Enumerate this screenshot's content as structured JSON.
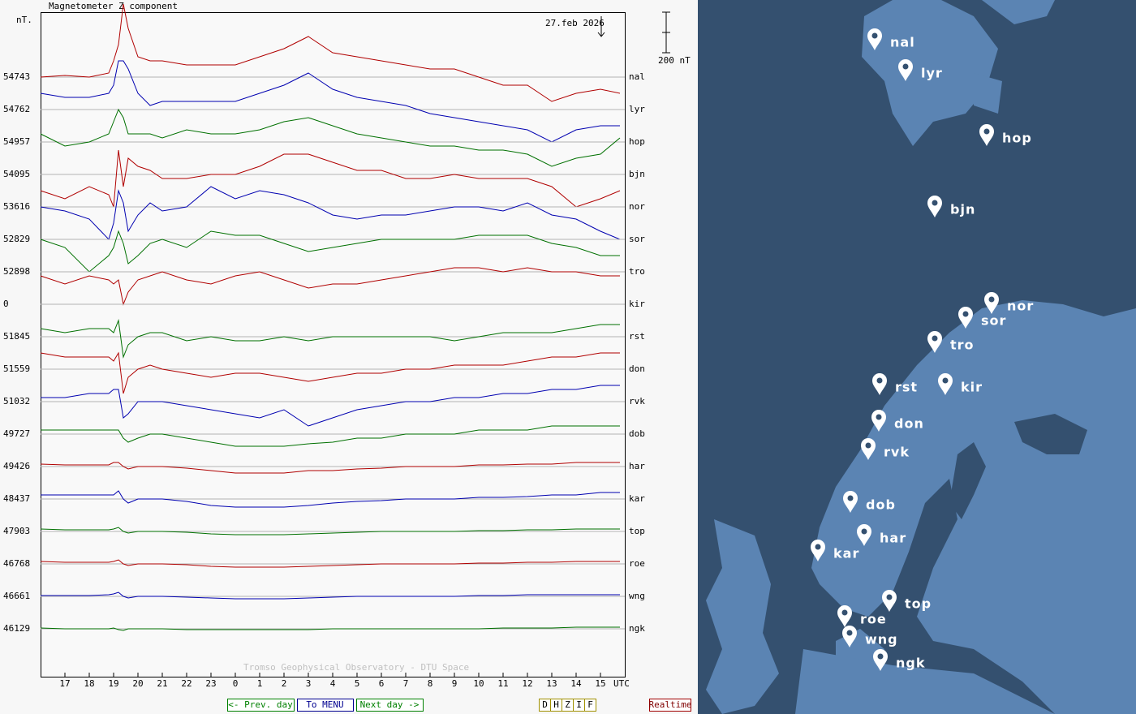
{
  "header": {
    "title": "Magnetometer Z component",
    "unit": "nT.",
    "date": "27.feb 2026"
  },
  "scale": {
    "value": 200,
    "label": "200 nT"
  },
  "credit": "Tromso Geophysical Observatory - DTU Space",
  "chart_data": {
    "type": "line",
    "x": [
      16,
      17,
      18,
      18.8,
      19,
      19.2,
      19.4,
      19.6,
      20,
      20.5,
      21,
      22,
      23,
      24,
      25,
      26,
      27,
      28,
      29,
      30,
      31,
      32,
      33,
      34,
      35,
      36,
      37,
      38,
      39,
      39.8
    ],
    "xlim": [
      16,
      40
    ],
    "xticks": [
      17,
      18,
      19,
      20,
      21,
      22,
      23,
      {
        "value": 24,
        "label": "0"
      },
      {
        "value": 25,
        "label": "1"
      },
      {
        "value": 26,
        "label": "2"
      },
      {
        "value": 27,
        "label": "3"
      },
      {
        "value": 28,
        "label": "4"
      },
      {
        "value": 29,
        "label": "5"
      },
      {
        "value": 30,
        "label": "6"
      },
      {
        "value": 31,
        "label": "7"
      },
      {
        "value": 32,
        "label": "8"
      },
      {
        "value": 33,
        "label": "9"
      },
      {
        "value": 34,
        "label": "10"
      },
      {
        "value": 35,
        "label": "11"
      },
      {
        "value": 36,
        "label": "12"
      },
      {
        "value": 37,
        "label": "13"
      },
      {
        "value": 38,
        "label": "14"
      },
      {
        "value": 39,
        "label": "15"
      }
    ],
    "x_unit": "UTC",
    "series": [
      {
        "name": "nal",
        "baseline": 54743,
        "color": "#b00000",
        "values": [
          0,
          8,
          0,
          20,
          80,
          160,
          360,
          240,
          100,
          80,
          80,
          60,
          60,
          60,
          100,
          140,
          200,
          120,
          100,
          80,
          60,
          40,
          40,
          0,
          -40,
          -40,
          -120,
          -80,
          -60,
          -80
        ]
      },
      {
        "name": "lyr",
        "baseline": 54762,
        "color": "#0000b0",
        "values": [
          80,
          60,
          60,
          80,
          120,
          240,
          240,
          200,
          80,
          20,
          40,
          40,
          40,
          40,
          80,
          120,
          180,
          100,
          60,
          40,
          20,
          -20,
          -40,
          -60,
          -80,
          -100,
          -160,
          -100,
          -80,
          -80
        ]
      },
      {
        "name": "hop",
        "baseline": 54957,
        "color": "#007000",
        "values": [
          40,
          -20,
          0,
          40,
          100,
          160,
          120,
          40,
          40,
          40,
          20,
          60,
          40,
          40,
          60,
          100,
          120,
          80,
          40,
          20,
          0,
          -20,
          -20,
          -40,
          -40,
          -60,
          -120,
          -80,
          -60,
          20
        ]
      },
      {
        "name": "bjn",
        "baseline": 54095,
        "color": "#b00000",
        "values": [
          -80,
          -120,
          -60,
          -100,
          -160,
          120,
          -60,
          80,
          40,
          20,
          -20,
          -20,
          0,
          0,
          40,
          100,
          100,
          60,
          20,
          20,
          -20,
          -20,
          0,
          -20,
          -20,
          -20,
          -60,
          -160,
          -120,
          -80
        ]
      },
      {
        "name": "nor",
        "baseline": 53616,
        "color": "#0000b0",
        "values": [
          0,
          -20,
          -60,
          -160,
          -80,
          80,
          20,
          -120,
          -40,
          20,
          -20,
          0,
          100,
          40,
          80,
          60,
          20,
          -40,
          -60,
          -40,
          -40,
          -20,
          0,
          0,
          -20,
          20,
          -40,
          -60,
          -120,
          -160
        ]
      },
      {
        "name": "sor",
        "baseline": 52829,
        "color": "#007000",
        "values": [
          0,
          -40,
          -160,
          -80,
          -40,
          40,
          -20,
          -120,
          -80,
          -20,
          0,
          -40,
          40,
          20,
          20,
          -20,
          -60,
          -40,
          -20,
          0,
          0,
          0,
          0,
          20,
          20,
          20,
          -20,
          -40,
          -80,
          -80
        ]
      },
      {
        "name": "tro",
        "baseline": 52898,
        "color": "#b00000",
        "values": [
          -20,
          -60,
          -20,
          -40,
          -60,
          -40,
          -160,
          -100,
          -40,
          -20,
          0,
          -40,
          -60,
          -20,
          0,
          -40,
          -80,
          -60,
          -60,
          -40,
          -20,
          0,
          20,
          20,
          0,
          20,
          0,
          0,
          -20,
          -20
        ]
      },
      {
        "name": "kir",
        "baseline": 0,
        "color": "#0000b0",
        "values": [
          null,
          null,
          null,
          null,
          null,
          null,
          null,
          null,
          null,
          null,
          null,
          null,
          null,
          null,
          null,
          null,
          null,
          null,
          null,
          null,
          null,
          null,
          null,
          null,
          null,
          null,
          null,
          null,
          null,
          null
        ]
      },
      {
        "name": "rst",
        "baseline": 51845,
        "color": "#007000",
        "values": [
          40,
          20,
          40,
          40,
          20,
          80,
          -100,
          -40,
          0,
          20,
          20,
          -20,
          0,
          -20,
          -20,
          0,
          -20,
          0,
          0,
          0,
          0,
          0,
          -20,
          0,
          20,
          20,
          20,
          40,
          60,
          60
        ]
      },
      {
        "name": "don",
        "baseline": 51559,
        "color": "#b00000",
        "values": [
          80,
          60,
          60,
          60,
          40,
          80,
          -120,
          -40,
          0,
          20,
          0,
          -20,
          -40,
          -20,
          -20,
          -40,
          -60,
          -40,
          -20,
          -20,
          0,
          0,
          20,
          20,
          20,
          40,
          60,
          60,
          80,
          80
        ]
      },
      {
        "name": "rvk",
        "baseline": 51032,
        "color": "#0000b0",
        "values": [
          20,
          20,
          40,
          40,
          60,
          60,
          -80,
          -60,
          0,
          0,
          0,
          -20,
          -40,
          -60,
          -80,
          -40,
          -120,
          -80,
          -40,
          -20,
          0,
          0,
          20,
          20,
          40,
          40,
          60,
          60,
          80,
          80
        ]
      },
      {
        "name": "dob",
        "baseline": 49727,
        "color": "#007000",
        "values": [
          20,
          20,
          20,
          20,
          20,
          20,
          -20,
          -40,
          -20,
          0,
          0,
          -20,
          -40,
          -60,
          -60,
          -60,
          -48,
          -40,
          -20,
          -20,
          0,
          0,
          0,
          20,
          20,
          20,
          40,
          40,
          40,
          40
        ]
      },
      {
        "name": "har",
        "baseline": 49426,
        "color": "#b00000",
        "values": [
          12,
          8,
          8,
          8,
          20,
          20,
          0,
          -12,
          0,
          0,
          0,
          -8,
          -20,
          -32,
          -32,
          -32,
          -20,
          -20,
          -12,
          -8,
          0,
          0,
          0,
          8,
          8,
          12,
          12,
          20,
          20,
          20
        ]
      },
      {
        "name": "kar",
        "baseline": 48437,
        "color": "#0000b0",
        "values": [
          20,
          20,
          20,
          20,
          20,
          40,
          0,
          -20,
          0,
          0,
          0,
          -12,
          -32,
          -40,
          -40,
          -40,
          -32,
          -20,
          -12,
          -8,
          0,
          0,
          0,
          8,
          8,
          12,
          20,
          20,
          32,
          32
        ]
      },
      {
        "name": "top",
        "baseline": 47903,
        "color": "#007000",
        "values": [
          12,
          8,
          8,
          8,
          12,
          20,
          0,
          -8,
          0,
          0,
          0,
          -4,
          -12,
          -16,
          -16,
          -16,
          -12,
          -8,
          -4,
          0,
          0,
          0,
          0,
          4,
          4,
          8,
          8,
          12,
          12,
          12
        ]
      },
      {
        "name": "roe",
        "baseline": 46768,
        "color": "#b00000",
        "values": [
          12,
          8,
          8,
          8,
          12,
          20,
          0,
          -8,
          0,
          0,
          0,
          -4,
          -12,
          -16,
          -16,
          -16,
          -12,
          -8,
          -4,
          0,
          0,
          0,
          0,
          4,
          4,
          8,
          8,
          12,
          12,
          12
        ]
      },
      {
        "name": "wng",
        "baseline": 46661,
        "color": "#0000b0",
        "values": [
          4,
          4,
          4,
          8,
          12,
          20,
          0,
          -8,
          0,
          0,
          0,
          -4,
          -8,
          -12,
          -12,
          -12,
          -8,
          -4,
          0,
          0,
          0,
          0,
          0,
          4,
          4,
          8,
          8,
          8,
          8,
          8
        ]
      },
      {
        "name": "ngk",
        "baseline": 46129,
        "color": "#007000",
        "values": [
          4,
          0,
          0,
          0,
          4,
          -4,
          -8,
          0,
          0,
          0,
          0,
          -4,
          -4,
          -4,
          -4,
          -4,
          -4,
          0,
          0,
          0,
          0,
          0,
          0,
          0,
          4,
          4,
          4,
          8,
          8,
          8
        ]
      }
    ]
  },
  "buttons": [
    {
      "label": "<- Prev. day",
      "color": "#008000"
    },
    {
      "label": "To MENU",
      "color": "#000090"
    },
    {
      "label": "Next day ->",
      "color": "#008000"
    }
  ],
  "components": [
    "D",
    "H",
    "Z",
    "I",
    "F"
  ],
  "realtime": "Realtime",
  "map": {
    "stations": [
      "nal",
      "lyr",
      "hop",
      "bjn",
      "nor",
      "sor",
      "tro",
      "rst",
      "kir",
      "don",
      "rvk",
      "dob",
      "har",
      "kar",
      "top",
      "roe",
      "wng",
      "ngk"
    ]
  }
}
